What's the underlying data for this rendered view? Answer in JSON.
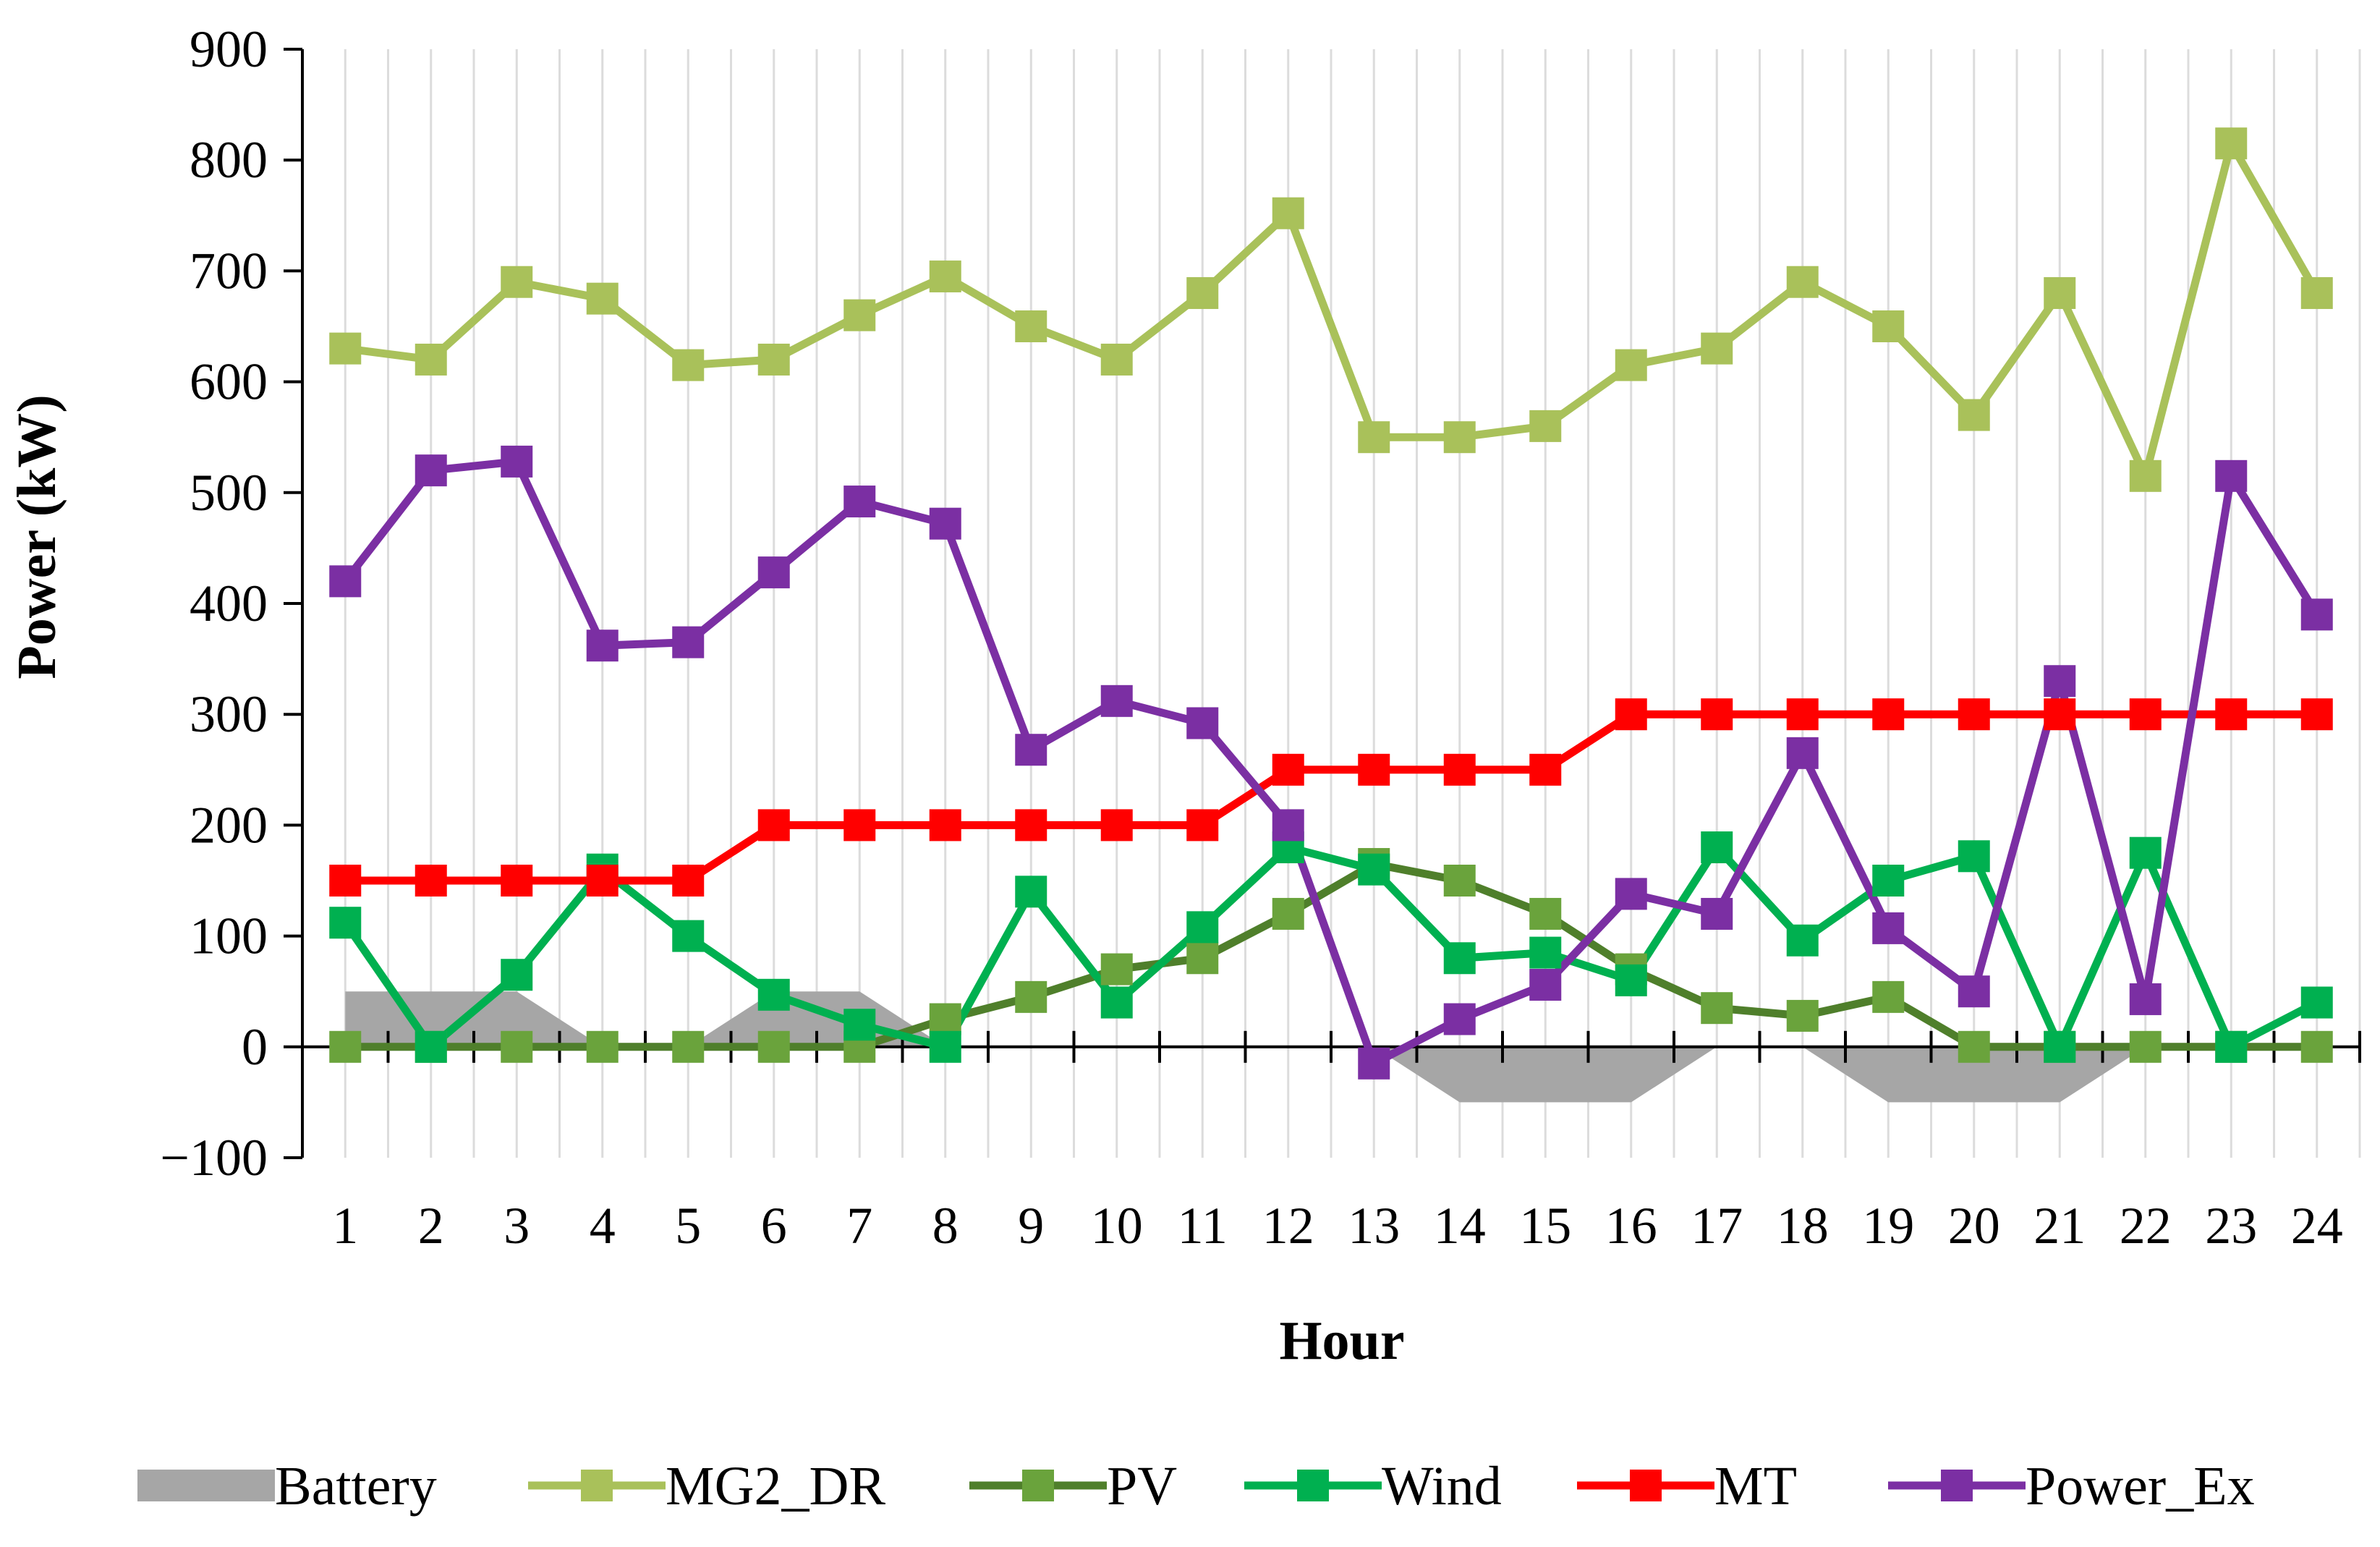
{
  "chart_data": {
    "type": "line",
    "xlabel": "Hour",
    "ylabel": "Power (kW)",
    "ylim": [
      -100,
      900
    ],
    "yticks": [
      -100,
      0,
      100,
      200,
      300,
      400,
      500,
      600,
      700,
      800,
      900
    ],
    "ytick_labels": [
      "−100",
      "0",
      "100",
      "200",
      "300",
      "400",
      "500",
      "600",
      "700",
      "800",
      "900"
    ],
    "categories": [
      "1",
      "2",
      "3",
      "4",
      "5",
      "6",
      "7",
      "8",
      "9",
      "10",
      "11",
      "12",
      "13",
      "14",
      "15",
      "16",
      "17",
      "18",
      "19",
      "20",
      "21",
      "22",
      "23",
      "24"
    ],
    "grid": "vertical",
    "legend_position": "bottom",
    "series": [
      {
        "name": "Battery",
        "type": "area",
        "color": "#a6a6a6",
        "values": [
          50,
          50,
          50,
          0,
          0,
          50,
          50,
          0,
          0,
          0,
          0,
          0,
          0,
          -50,
          -50,
          -50,
          0,
          0,
          -50,
          -50,
          -50,
          0,
          0,
          0
        ]
      },
      {
        "name": "MG2_DR",
        "type": "line",
        "color": "#a9c15a",
        "values": [
          630,
          620,
          690,
          675,
          615,
          620,
          660,
          695,
          650,
          620,
          680,
          752,
          550,
          550,
          560,
          615,
          630,
          690,
          650,
          570,
          680,
          515,
          815,
          680
        ]
      },
      {
        "name": "PV",
        "type": "line",
        "color": "#4f7f2b",
        "marker_color": "#6aa33c",
        "values": [
          0,
          0,
          0,
          0,
          0,
          0,
          0,
          25,
          45,
          70,
          80,
          120,
          165,
          150,
          120,
          70,
          35,
          28,
          45,
          0,
          0,
          0,
          0,
          0
        ]
      },
      {
        "name": "Wind",
        "type": "line",
        "color": "#00b050",
        "values": [
          112,
          0,
          65,
          160,
          100,
          47,
          20,
          0,
          140,
          40,
          108,
          180,
          160,
          80,
          85,
          60,
          180,
          96,
          150,
          172,
          0,
          175,
          0,
          40
        ]
      },
      {
        "name": "MT",
        "type": "line",
        "color": "#ff0000",
        "values": [
          150,
          150,
          150,
          150,
          150,
          200,
          200,
          200,
          200,
          200,
          200,
          250,
          250,
          250,
          250,
          300,
          300,
          300,
          300,
          300,
          300,
          300,
          300,
          300
        ]
      },
      {
        "name": "Power_Ex",
        "type": "line",
        "color": "#7b2fa3",
        "values": [
          420,
          520,
          528,
          362,
          365,
          428,
          492,
          472,
          268,
          312,
          292,
          200,
          -15,
          25,
          56,
          138,
          120,
          265,
          107,
          50,
          330,
          43,
          515,
          390
        ]
      }
    ]
  }
}
